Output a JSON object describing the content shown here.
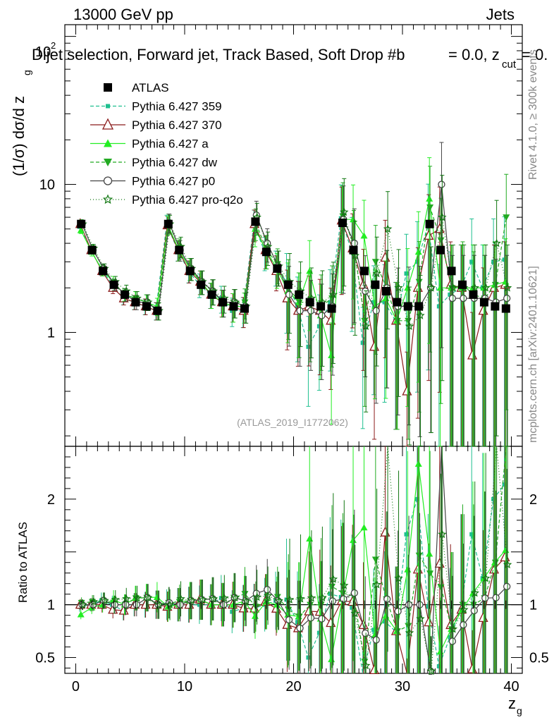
{
  "header": {
    "left": "13000 GeV pp",
    "right": "Jets",
    "title": "Dijet selection, Forward jet, Track Based, Soft Drop #b",
    "title_tail": "= 0.0, z",
    "title_sub": "cut",
    "title_end": "= 0.",
    "ymax_label": "10",
    "ymax_exp": "2",
    "analysis_id": "(ATLAS_2019_I1772062)"
  },
  "side": {
    "rivet": "Rivet 4.1.0, ≥ 300k events",
    "mcplots": "mcplots.cern.ch [arXiv:2401.10621]"
  },
  "colors": {
    "ATLAS": "#000000",
    "p359": "#1fbf8f",
    "p370": "#8b1a1a",
    "pa": "#22ee22",
    "pdw": "#22aa22",
    "pp0": "#444444",
    "pq2o": "#117711"
  },
  "chart_data": {
    "type": "scatter",
    "title": "Dijet selection, Forward jet, Track Based, Soft Drop",
    "xlabel": "z_g",
    "ylabel": "(1/σ) dσ/d z_g",
    "ratio_ylabel": "Ratio to ATLAS",
    "xlim": [
      -1,
      41
    ],
    "ylim": [
      0.17,
      120
    ],
    "ylog": true,
    "ratio_ylim": [
      0.35,
      2.5
    ],
    "x_ticks": [
      "0",
      "10",
      "20",
      "30",
      "40"
    ],
    "y_ticks": [
      "1",
      "10"
    ],
    "ratio_ticks": [
      "0.5",
      "1",
      "2"
    ],
    "x": [
      0.5,
      1.5,
      2.5,
      3.5,
      4.5,
      5.5,
      6.5,
      7.5,
      8.5,
      9.5,
      10.5,
      11.5,
      12.5,
      13.5,
      14.5,
      15.5,
      16.5,
      17.5,
      18.5,
      19.5,
      20.5,
      21.5,
      22.5,
      23.5,
      24.5,
      25.5,
      26.5,
      27.5,
      28.5,
      29.5,
      30.5,
      31.5,
      32.5,
      33.5,
      34.5,
      35.5,
      36.5,
      37.5,
      38.5,
      39.5
    ],
    "series": [
      {
        "name": "ATLAS",
        "key": "ATLAS",
        "marker": "square",
        "dash": "none",
        "values": [
          5.4,
          3.6,
          2.6,
          2.1,
          1.8,
          1.6,
          1.5,
          1.4,
          5.4,
          3.6,
          2.6,
          2.1,
          1.8,
          1.6,
          1.5,
          1.45,
          5.6,
          3.5,
          2.7,
          2.1,
          1.8,
          1.6,
          1.5,
          1.45,
          5.5,
          3.6,
          2.6,
          2.1,
          1.9,
          1.6,
          1.5,
          1.5,
          5.4,
          3.6,
          2.6,
          2.1,
          1.8,
          1.6,
          1.5,
          1.45
        ]
      },
      {
        "name": "Pythia 6.427 359",
        "key": "p359",
        "marker": "smallsquare",
        "dash": "5,3",
        "values": [
          5.3,
          3.6,
          2.7,
          2.1,
          1.7,
          1.6,
          1.5,
          1.4,
          5.4,
          3.6,
          2.6,
          2.1,
          1.8,
          1.7,
          1.4,
          1.4,
          5.4,
          3.5,
          2.8,
          2.2,
          1.5,
          0.8,
          1.1,
          1.6,
          5.9,
          3.5,
          0.85,
          1.6,
          1.6,
          1.2,
          2.5,
          3.0,
          5.3,
          1.5,
          1.8,
          2.0,
          3.0,
          2.0,
          3.0,
          3.1
        ]
      },
      {
        "name": "Pythia 6.427 370",
        "key": "p370",
        "marker": "triangle-open",
        "dash": "none",
        "values": [
          5.4,
          3.6,
          2.6,
          2.0,
          1.7,
          1.6,
          1.5,
          1.4,
          5.3,
          3.6,
          2.6,
          2.2,
          1.8,
          1.6,
          1.5,
          1.4,
          5.4,
          3.6,
          2.6,
          1.7,
          1.4,
          1.5,
          1.4,
          1.2,
          5.7,
          3.7,
          2.1,
          0.8,
          3.2,
          1.2,
          0.4,
          2.0,
          4.5,
          5.0,
          2.1,
          2.0,
          0.7,
          1.4,
          2.0,
          2.1
        ]
      },
      {
        "name": "Pythia 6.427 a",
        "key": "pa",
        "marker": "triangle",
        "dash": "none",
        "values": [
          4.9,
          3.5,
          2.6,
          2.2,
          1.8,
          1.7,
          1.6,
          1.5,
          5.3,
          3.6,
          2.7,
          2.2,
          1.8,
          1.6,
          1.5,
          1.5,
          5.0,
          3.6,
          2.7,
          1.9,
          1.6,
          2.6,
          1.3,
          0.7,
          5.8,
          5.8,
          4.5,
          1.5,
          1.7,
          1.2,
          2.0,
          3.5,
          8.0,
          2.0,
          2.0,
          2.0,
          2.0,
          2.0,
          2.1,
          2.2
        ]
      },
      {
        "name": "Pythia 6.427 dw",
        "key": "pdw",
        "marker": "triangle-down",
        "dash": "5,3",
        "values": [
          5.5,
          3.7,
          2.7,
          2.1,
          1.8,
          1.7,
          1.6,
          1.4,
          5.5,
          3.7,
          2.7,
          2.2,
          1.9,
          1.6,
          1.6,
          1.6,
          5.5,
          3.6,
          2.9,
          2.0,
          1.6,
          1.6,
          1.5,
          1.7,
          6.1,
          3.9,
          1.2,
          3.0,
          2.0,
          1.2,
          1.2,
          2.2,
          7.0,
          4.2,
          2.0,
          2.1,
          1.8,
          1.7,
          2.1,
          6.0
        ]
      },
      {
        "name": "Pythia 6.427 p0",
        "key": "pp0",
        "marker": "circle-open",
        "dash": "none",
        "values": [
          5.4,
          3.6,
          2.7,
          2.1,
          1.8,
          1.6,
          1.6,
          1.4,
          5.5,
          3.6,
          2.7,
          2.2,
          1.9,
          1.6,
          1.6,
          1.5,
          6.2,
          4.0,
          2.8,
          1.8,
          1.4,
          1.4,
          1.3,
          1.5,
          5.8,
          4.0,
          1.9,
          1.4,
          2.0,
          1.5,
          1.5,
          1.5,
          2.0,
          10.0,
          1.7,
          1.7,
          1.7,
          1.7,
          1.6,
          1.7
        ]
      },
      {
        "name": "Pythia 6.427 pro-q2o",
        "key": "pq2o",
        "marker": "star",
        "dash": "1,3",
        "values": [
          5.4,
          3.7,
          2.7,
          2.2,
          1.9,
          1.7,
          1.6,
          1.4,
          5.4,
          3.8,
          2.7,
          2.2,
          1.9,
          1.7,
          1.6,
          1.5,
          6.0,
          3.8,
          2.8,
          2.2,
          1.9,
          1.7,
          1.6,
          1.8,
          6.5,
          3.3,
          1.1,
          2.5,
          5.0,
          2.0,
          1.1,
          1.3,
          2.0,
          6.0,
          2.0,
          2.0,
          2.0,
          2.0,
          4.0,
          2.0
        ]
      }
    ]
  }
}
